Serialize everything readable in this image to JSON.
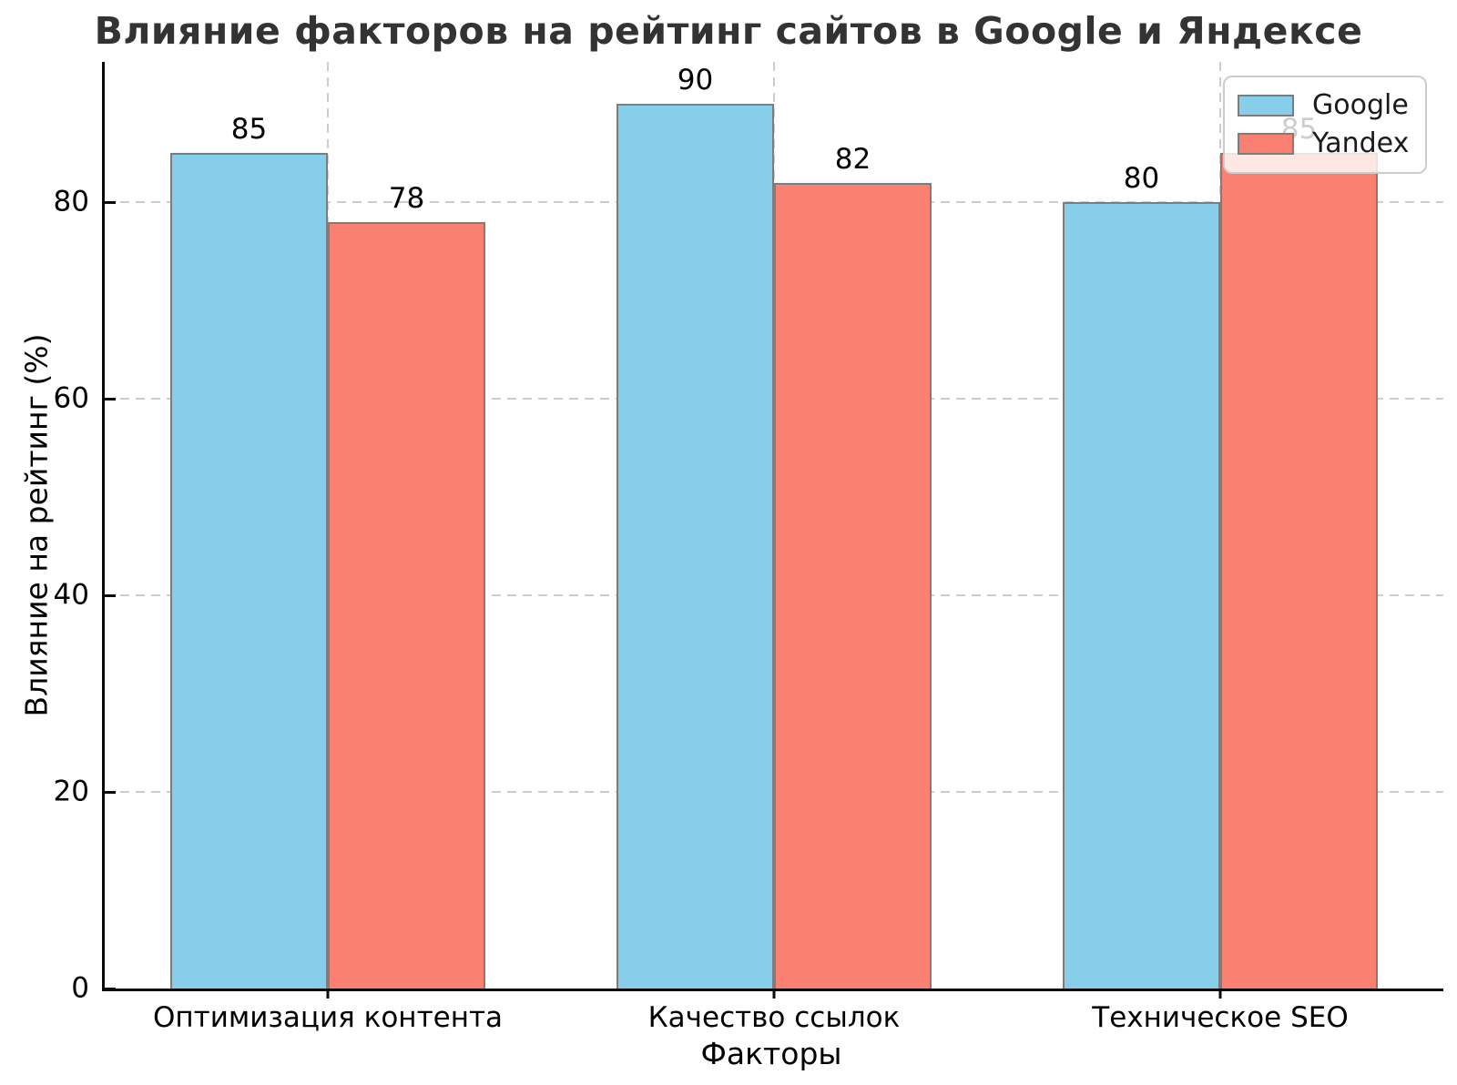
{
  "chart_data": {
    "type": "bar",
    "title": "Влияние факторов на рейтинг сайтов в Google и Яндексе",
    "xlabel": "Факторы",
    "ylabel": "Влияние на рейтинг (%)",
    "categories": [
      "Оптимизация контента",
      "Качество ссылок",
      "Техническое SEO"
    ],
    "series": [
      {
        "name": "Google",
        "color": "#87CEEB",
        "values": [
          85,
          90,
          80
        ]
      },
      {
        "name": "Yandex",
        "color": "#FA8072",
        "values": [
          78,
          82,
          85
        ]
      }
    ],
    "bar_value_labels": [
      [
        "85",
        "90",
        "80"
      ],
      [
        "78",
        "82",
        "85"
      ]
    ],
    "yticks": [
      "0",
      "20",
      "40",
      "60",
      "80"
    ],
    "ylim": [
      0,
      94.3
    ],
    "grid": "dashed-both-axes",
    "grid_color": "#cdcdcd",
    "bar_edge_color": "#7d7d7d",
    "legend_position": "upper-right",
    "legend_entries": [
      "Google",
      "Yandex"
    ]
  }
}
